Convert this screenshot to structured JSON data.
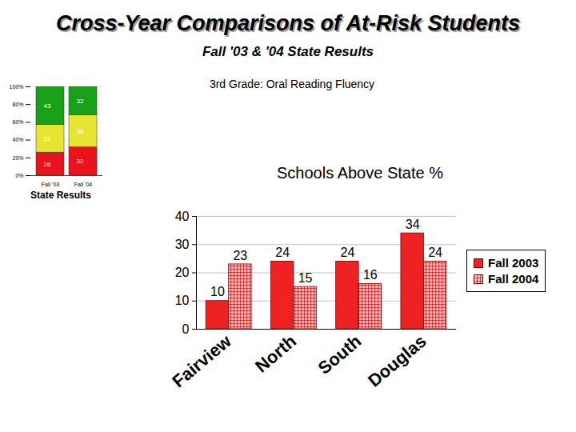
{
  "header": {
    "title": "Cross-Year Comparisons of At-Risk Students",
    "subtitle": "Fall '03 & '04 State Results",
    "note": "3rd Grade: Oral Reading Fluency"
  },
  "chart_data": [
    {
      "type": "bar",
      "stacked": true,
      "caption": "State Results",
      "categories": [
        "Fall '03",
        "Fall '04"
      ],
      "series": [
        {
          "color": "#e8141c",
          "values": [
            26,
            32
          ]
        },
        {
          "color": "#e6e632",
          "values": [
            31,
            36
          ]
        },
        {
          "color": "#18a018",
          "values": [
            43,
            32
          ]
        }
      ],
      "ylim": [
        0,
        100
      ],
      "yticks": [
        {
          "value": 0,
          "label": "0%"
        },
        {
          "value": 20,
          "label": "20%"
        },
        {
          "value": 40,
          "label": "40%"
        },
        {
          "value": 60,
          "label": "60%"
        },
        {
          "value": 80,
          "label": "80%"
        },
        {
          "value": 100,
          "label": "100%"
        }
      ],
      "grid": true,
      "data_labels": true
    },
    {
      "type": "bar",
      "title": "Schools Above State %",
      "categories": [
        "Fairview",
        "North",
        "South",
        "Douglas"
      ],
      "series": [
        {
          "name": "Fall 2003",
          "color": "#ee2222",
          "values": [
            10,
            24,
            24,
            34
          ]
        },
        {
          "name": "Fall 2004",
          "color": "#f8c8c8",
          "values": [
            23,
            15,
            16,
            24
          ]
        }
      ],
      "ylim": [
        0,
        40
      ],
      "yticks": [
        0,
        10,
        20,
        30,
        40
      ],
      "grid": true,
      "legend": "right",
      "data_labels": true
    }
  ]
}
